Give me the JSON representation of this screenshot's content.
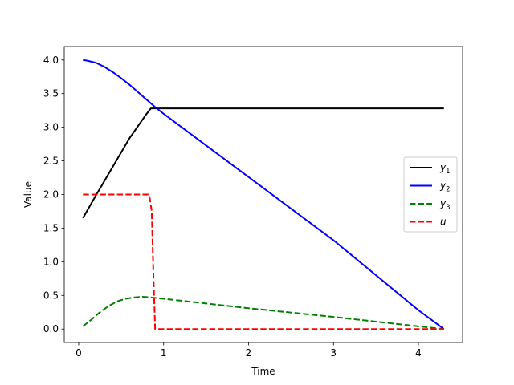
{
  "chart_data": {
    "type": "line",
    "title": "",
    "xlabel": "Time",
    "ylabel": "Value",
    "xlim": [
      -0.17,
      4.52
    ],
    "ylim": [
      -0.2,
      4.2
    ],
    "xticks": [
      0,
      1,
      2,
      3,
      4
    ],
    "yticks": [
      0.0,
      0.5,
      1.0,
      1.5,
      2.0,
      2.5,
      3.0,
      3.5,
      4.0
    ],
    "xtick_labels": [
      "0",
      "1",
      "2",
      "3",
      "4"
    ],
    "ytick_labels": [
      "0.0",
      "0.5",
      "1.0",
      "1.5",
      "2.0",
      "2.5",
      "3.0",
      "3.5",
      "4.0"
    ],
    "grid": false,
    "legend_position": "center-right",
    "series": [
      {
        "name": "y",
        "subscript": "1",
        "color": "#000000",
        "style": "solid",
        "x": [
          0.05,
          0.2,
          0.4,
          0.6,
          0.8,
          0.85,
          1.0,
          2.0,
          3.0,
          4.0,
          4.3
        ],
        "y": [
          1.65,
          1.98,
          2.41,
          2.84,
          3.2,
          3.28,
          3.28,
          3.28,
          3.28,
          3.28,
          3.28
        ]
      },
      {
        "name": "y",
        "subscript": "2",
        "color": "#0000ff",
        "style": "solid",
        "x": [
          0.05,
          0.1,
          0.2,
          0.3,
          0.4,
          0.5,
          0.6,
          0.7,
          0.8,
          0.9,
          1.0,
          2.0,
          3.0,
          4.0,
          4.3
        ],
        "y": [
          4.0,
          3.99,
          3.96,
          3.9,
          3.82,
          3.73,
          3.63,
          3.52,
          3.41,
          3.3,
          3.2,
          2.26,
          1.32,
          0.28,
          0.0
        ]
      },
      {
        "name": "y",
        "subscript": "3",
        "color": "#008000",
        "style": "dashed",
        "x": [
          0.05,
          0.15,
          0.25,
          0.35,
          0.45,
          0.55,
          0.65,
          0.75,
          0.85,
          1.0,
          2.0,
          3.0,
          4.0,
          4.3
        ],
        "y": [
          0.04,
          0.14,
          0.25,
          0.34,
          0.41,
          0.45,
          0.47,
          0.48,
          0.47,
          0.45,
          0.31,
          0.18,
          0.04,
          0.0
        ]
      },
      {
        "name": "u",
        "subscript": "",
        "color": "#ff0000",
        "style": "dashed",
        "x": [
          0.05,
          0.3,
          0.6,
          0.83,
          0.86,
          0.88,
          0.9,
          1.0,
          2.0,
          3.0,
          4.0,
          4.3
        ],
        "y": [
          2.0,
          2.0,
          2.0,
          2.0,
          1.75,
          0.8,
          0.0,
          0.0,
          0.0,
          0.0,
          0.0,
          0.0
        ]
      }
    ]
  }
}
